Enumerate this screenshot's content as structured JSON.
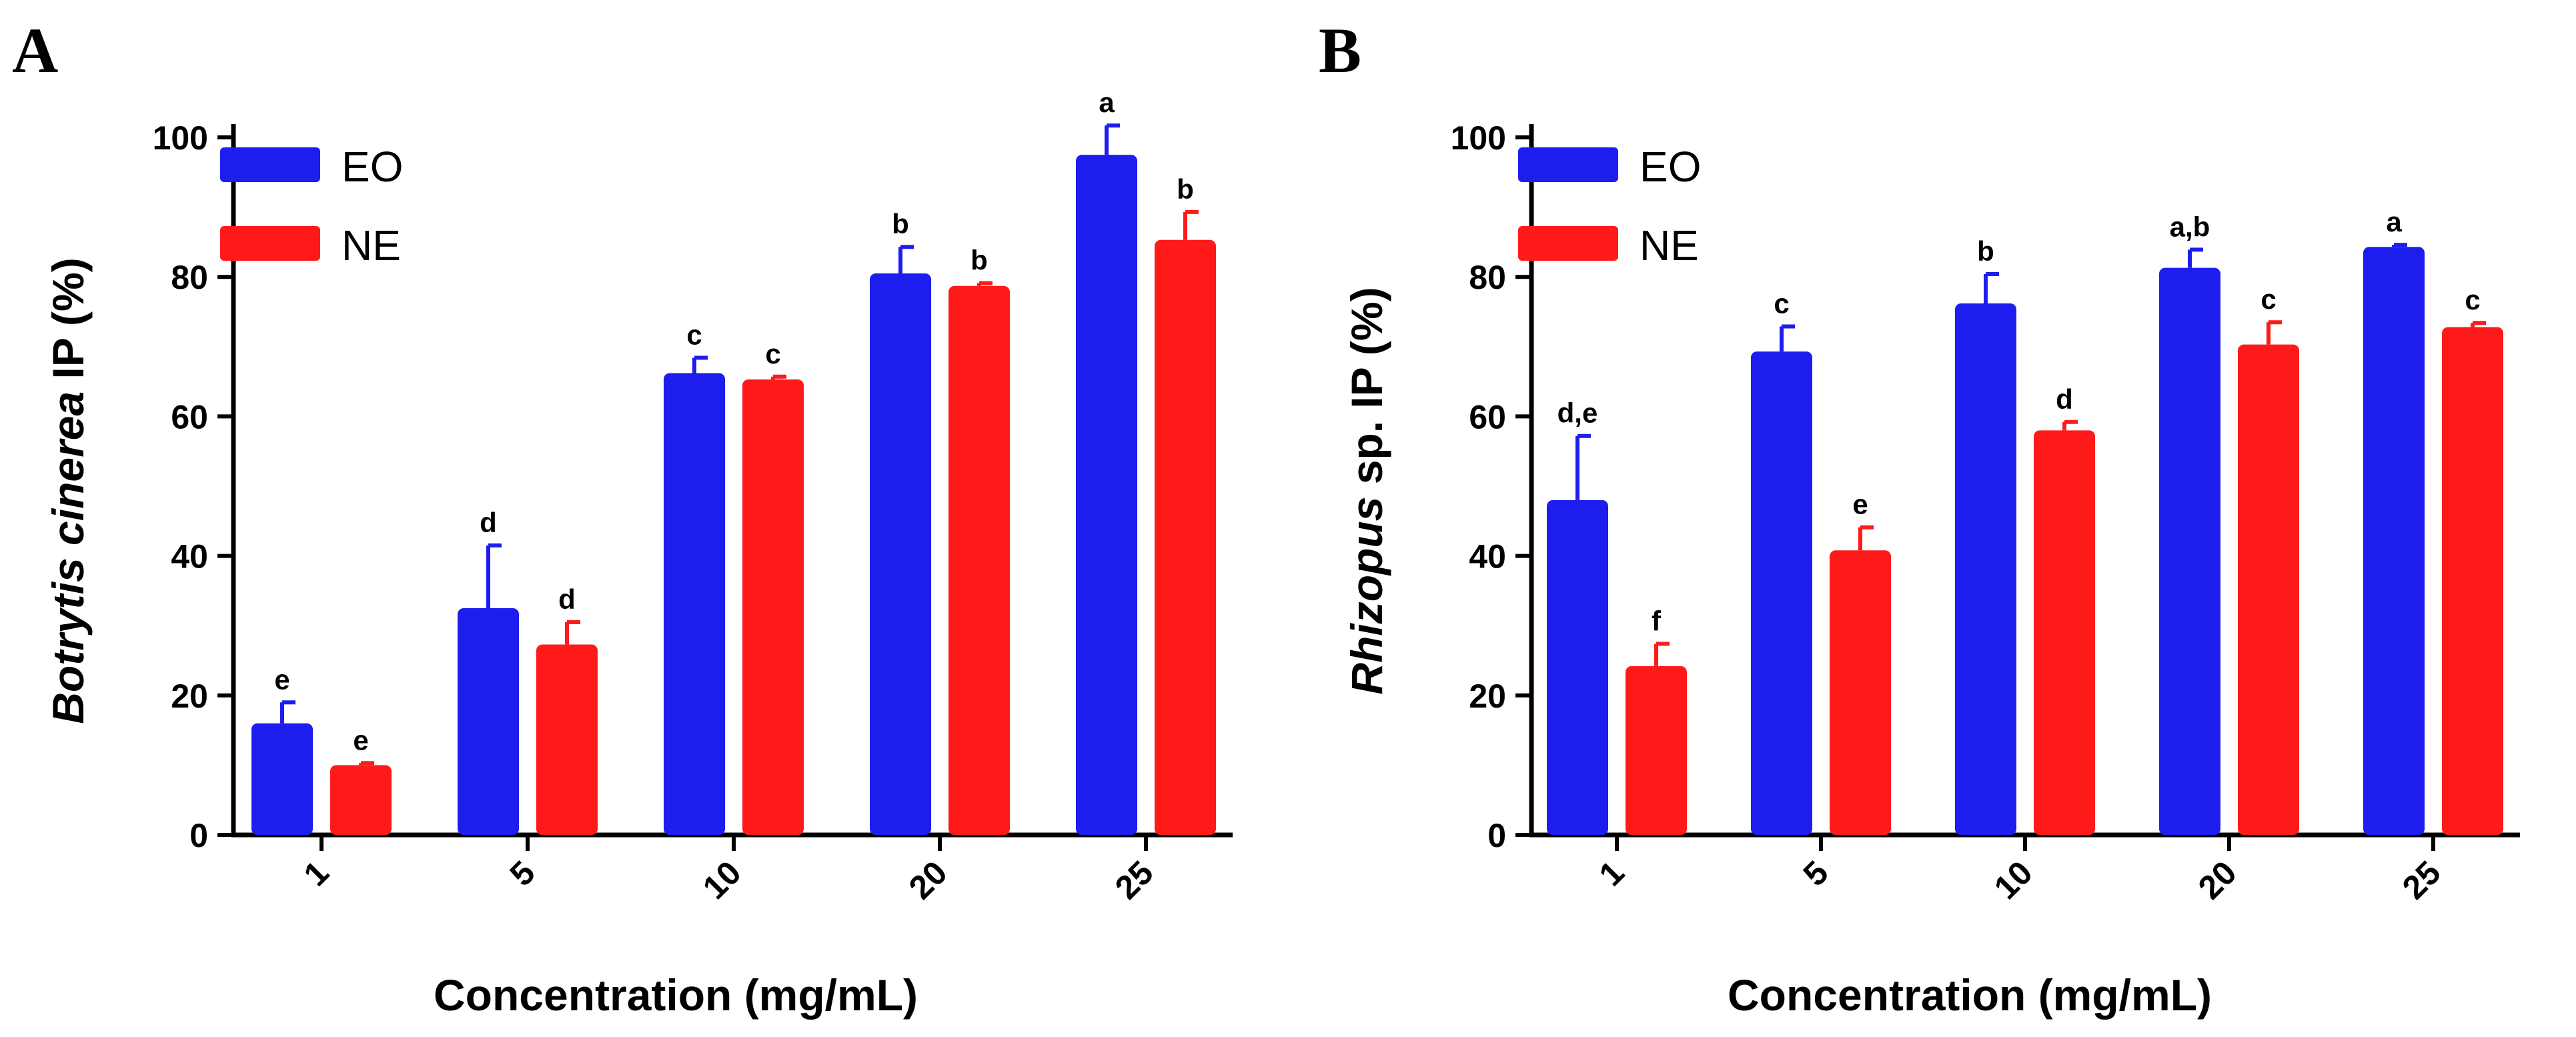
{
  "colors": {
    "eo": "#1d1dee",
    "ne": "#ff1a1a",
    "axis": "#000000"
  },
  "chart_data": [
    {
      "panel": "A",
      "type": "bar",
      "categories": [
        "1",
        "5",
        "10",
        "20",
        "25"
      ],
      "series": [
        {
          "name": "EO",
          "values": [
            16,
            32.5,
            66.2,
            80.5,
            97.5
          ],
          "errors": [
            3,
            9,
            2.2,
            3.8,
            4.2
          ],
          "labels": [
            "e",
            "d",
            "c",
            "b",
            "a"
          ]
        },
        {
          "name": "NE",
          "values": [
            10,
            27.3,
            65.3,
            78.7,
            85.3
          ],
          "errors": [
            0.3,
            3.2,
            0.4,
            0.4,
            4
          ],
          "labels": [
            "e",
            "d",
            "c",
            "b",
            "b"
          ]
        }
      ],
      "ylabel_italic": "Botrytis cinerea",
      "ylabel_rest": " IP (%)",
      "xlabel": "Concentration (mg/mL)",
      "ylim": [
        0,
        100
      ],
      "yticks": [
        "0",
        "20",
        "40",
        "60",
        "80",
        "100"
      ],
      "legend": [
        "EO",
        "NE"
      ],
      "legend_position": "top-left"
    },
    {
      "panel": "B",
      "type": "bar",
      "categories": [
        "1",
        "5",
        "10",
        "20",
        "25"
      ],
      "series": [
        {
          "name": "EO",
          "values": [
            48,
            69.3,
            76.2,
            81.3,
            84.3
          ],
          "errors": [
            9.2,
            3.6,
            4.2,
            2.6,
            0.3
          ],
          "labels": [
            "d,e",
            "c",
            "b",
            "a,b",
            "a"
          ]
        },
        {
          "name": "NE",
          "values": [
            24.2,
            40.8,
            58,
            70.3,
            72.8
          ],
          "errors": [
            3.2,
            3.3,
            1.2,
            3.2,
            0.6
          ],
          "labels": [
            "f",
            "e",
            "d",
            "c",
            "c"
          ]
        }
      ],
      "ylabel_italic": "Rhizopus",
      "ylabel_rest": " sp. IP (%)",
      "xlabel": "Concentration (mg/mL)",
      "ylim": [
        0,
        100
      ],
      "yticks": [
        "0",
        "20",
        "40",
        "60",
        "80",
        "100"
      ],
      "legend": [
        "EO",
        "NE"
      ],
      "legend_position": "top-left"
    }
  ]
}
